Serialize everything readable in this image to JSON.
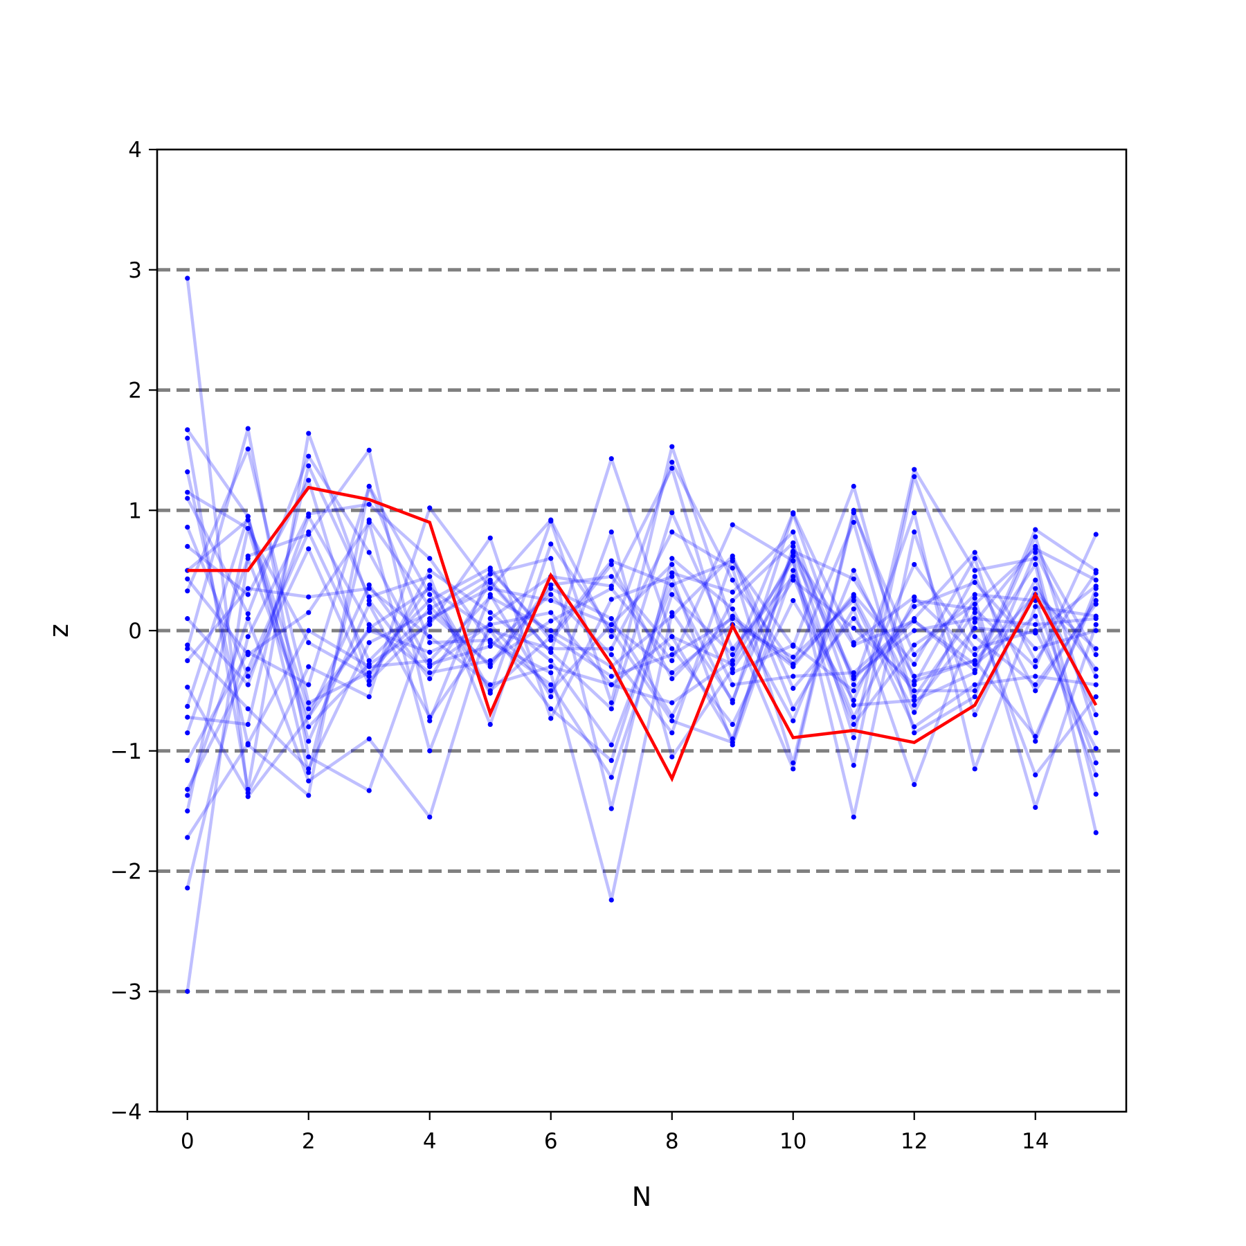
{
  "chart_data": {
    "type": "line",
    "title": "",
    "xlabel": "N",
    "ylabel": "z",
    "xlim": [
      -0.5,
      15.5
    ],
    "ylim": [
      -4,
      4
    ],
    "xticks": [
      0,
      2,
      4,
      6,
      8,
      10,
      12,
      14
    ],
    "xtick_labels": [
      "0",
      "2",
      "4",
      "6",
      "8",
      "10",
      "12",
      "14"
    ],
    "yticks": [
      -4,
      -3,
      -2,
      -1,
      0,
      1,
      2,
      3,
      4
    ],
    "ytick_labels": [
      "−4",
      "−3",
      "−2",
      "−1",
      "0",
      "1",
      "2",
      "3",
      "4"
    ],
    "reference_lines": [
      -3,
      -2,
      -1,
      0,
      1,
      2,
      3
    ],
    "reference_line_style": "dashed",
    "reference_line_color": "#808080",
    "background_series_color": "#0000ff",
    "highlight_color": "#ff0000",
    "grid": false,
    "legend": "none",
    "x": [
      0,
      1,
      2,
      3,
      4,
      5,
      6,
      7,
      8,
      9,
      10,
      11,
      12,
      13,
      14,
      15
    ],
    "highlight_series": {
      "values": [
        0.5,
        0.5,
        1.19,
        1.09,
        0.9,
        -0.69,
        0.46,
        -0.28,
        -1.23,
        0.04,
        -0.89,
        -0.83,
        -0.93,
        -0.62,
        0.3,
        -0.62
      ]
    },
    "background_series": [
      {
        "values": [
          2.93,
          -1.38,
          -0.72,
          0.38,
          -0.3,
          0.05,
          0.15,
          -0.45,
          -0.05,
          -0.28,
          0.62,
          -0.4,
          0.08,
          -0.33,
          0.84,
          0.5
        ]
      },
      {
        "values": [
          -3.0,
          0.62,
          0.8,
          1.5,
          -0.75,
          0.5,
          -0.05,
          0.58,
          0.38,
          0.58,
          -0.13,
          1.2,
          -0.62,
          0.02,
          -0.02,
          0.37
        ]
      },
      {
        "values": [
          1.67,
          0.95,
          -1.18,
          0.92,
          0.2,
          -0.3,
          0.35,
          0.1,
          -0.71,
          0.25,
          0.73,
          -0.89,
          1.34,
          0.5,
          0.6,
          -1.36
        ]
      },
      {
        "values": [
          1.6,
          -1.32,
          1.64,
          0.25,
          -0.4,
          0.4,
          -0.18,
          1.43,
          -0.05,
          -0.9,
          0.66,
          0.43,
          -0.38,
          -0.25,
          -0.88,
          0.3
        ]
      },
      {
        "values": [
          1.32,
          -0.95,
          -1.37,
          1.2,
          0.3,
          -0.52,
          0.91,
          -0.6,
          1.53,
          0.05,
          -1.15,
          0.98,
          -0.2,
          0.3,
          0.25,
          -1.1
        ]
      },
      {
        "values": [
          1.15,
          0.85,
          -0.8,
          -0.28,
          0.05,
          0.77,
          -0.73,
          0.26,
          0.45,
          -0.95,
          0.5,
          -0.72,
          0.25,
          0.18,
          -0.3,
          0.8
        ]
      },
      {
        "values": [
          1.1,
          0.14,
          1.45,
          0.65,
          -0.28,
          -0.13,
          0.3,
          -0.2,
          -0.85,
          0.6,
          -0.65,
          0.18,
          -1.28,
          0.07,
          0.7,
          -0.2
        ]
      },
      {
        "values": [
          0.86,
          -0.38,
          0.68,
          -0.45,
          0.5,
          0.15,
          -0.25,
          -0.95,
          0.38,
          -0.6,
          0.97,
          -0.45,
          0.98,
          -1.15,
          0.2,
          0.12
        ]
      },
      {
        "values": [
          0.43,
          -0.2,
          0.15,
          0.9,
          -1.0,
          0.3,
          -0.55,
          0.82,
          -1.05,
          -0.32,
          0.42,
          0.02,
          -0.45,
          0.45,
          -0.5,
          0.25
        ]
      },
      {
        "values": [
          0.33,
          1.51,
          -0.6,
          -0.35,
          0.18,
          0.47,
          0.6,
          -1.48,
          0.6,
          0.18,
          -0.75,
          0.5,
          -0.55,
          0.15,
          -1.2,
          -0.55
        ]
      },
      {
        "values": [
          0.1,
          -0.45,
          0.95,
          0.05,
          -0.35,
          -0.25,
          0.08,
          0.35,
          -0.25,
          0.88,
          0.58,
          -1.55,
          0.82,
          -0.7,
          0.35,
          -0.32
        ]
      },
      {
        "values": [
          -0.15,
          1.68,
          -1.05,
          -1.33,
          0.1,
          0.35,
          0.92,
          -0.05,
          1.4,
          0.42,
          -0.28,
          0.28,
          -0.68,
          0.27,
          -1.47,
          0.05
        ]
      },
      {
        "values": [
          -0.25,
          0.35,
          0.28,
          0.35,
          -0.05,
          -0.45,
          -0.3,
          -0.45,
          -0.6,
          -0.25,
          0.98,
          -0.1,
          0.28,
          -0.2,
          0.55,
          -1.68
        ]
      },
      {
        "values": [
          -0.47,
          -1.35,
          -0.3,
          -0.55,
          1.02,
          0.35,
          0.25,
          0.05,
          0.55,
          -0.45,
          -0.38,
          -0.35,
          0.1,
          0.65,
          -0.25,
          0.48
        ]
      },
      {
        "values": [
          -0.63,
          0.95,
          -0.92,
          0.22,
          -0.72,
          0.0,
          -0.65,
          -1.08,
          0.48,
          0.32,
          0.82,
          -0.62,
          -0.58,
          -0.35,
          0.78,
          -0.85
        ]
      },
      {
        "values": [
          -0.72,
          -0.78,
          1.37,
          0.28,
          0.45,
          -0.78,
          0.72,
          0.0,
          -0.75,
          -0.93,
          0.7,
          -0.38,
          0.0,
          0.1,
          0.05,
          0.1
        ]
      },
      {
        "values": [
          -0.85,
          0.6,
          -0.72,
          0.02,
          0.35,
          0.0,
          -0.15,
          -0.15,
          0.82,
          0.52,
          -1.1,
          1.0,
          -0.42,
          -0.25,
          0.3,
          -0.15
        ]
      },
      {
        "values": [
          -1.08,
          -0.18,
          -0.45,
          1.2,
          -0.1,
          -0.08,
          -0.45,
          -1.22,
          0.3,
          -0.2,
          0.58,
          -1.12,
          1.28,
          -0.05,
          -0.45,
          0.22
        ]
      },
      {
        "values": [
          -1.32,
          -0.32,
          0.82,
          -0.25,
          0.25,
          0.52,
          -0.08,
          0.55,
          -0.4,
          0.12,
          -0.28,
          0.9,
          -0.85,
          -0.55,
          0.65,
          -0.38
        ]
      },
      {
        "values": [
          -1.37,
          0.1,
          -1.25,
          -0.9,
          -1.55,
          0.1,
          0.45,
          0.37,
          1.35,
          -0.35,
          -0.12,
          -0.5,
          0.2,
          0.4,
          -0.15,
          0.0
        ]
      },
      {
        "values": [
          -1.5,
          0.85,
          -0.1,
          -0.38,
          0.38,
          -0.5,
          -0.05,
          -0.38,
          -0.2,
          0.1,
          -0.3,
          0.3,
          -0.28,
          0.6,
          -0.92,
          0.35
        ]
      },
      {
        "values": [
          -1.72,
          -0.94,
          0.0,
          -0.3,
          -0.25,
          0.28,
          0.0,
          -0.3,
          0.12,
          0.62,
          -0.48,
          0.1,
          -0.5,
          -0.5,
          0.42,
          -0.7
        ]
      },
      {
        "values": [
          -2.14,
          -0.05,
          0.97,
          1.05,
          0.6,
          -0.1,
          -0.35,
          -2.24,
          0.15,
          -0.58,
          0.65,
          -0.12,
          0.08,
          -0.28,
          0.12,
          -1.2
        ]
      },
      {
        "values": [
          0.5,
          0.92,
          -0.65,
          0.0,
          -0.18,
          0.05,
          -0.5,
          0.05,
          -0.35,
          0.05,
          -0.22,
          0.25,
          -0.8,
          -0.45,
          -0.38,
          -0.45
        ]
      },
      {
        "values": [
          -0.12,
          -0.65,
          -1.15,
          -0.1,
          0.15,
          -0.28,
          0.38,
          0.45,
          -0.15,
          -0.78,
          0.25,
          -0.58,
          0.55,
          -0.15,
          0.0,
          -0.98
        ]
      },
      {
        "values": [
          0.7,
          0.3,
          1.25,
          -0.42,
          0.08,
          0.42,
          -0.18,
          -0.65,
          0.98,
          -0.15,
          0.45,
          -0.78,
          -0.12,
          0.22,
          0.68,
          0.42
        ]
      }
    ]
  }
}
